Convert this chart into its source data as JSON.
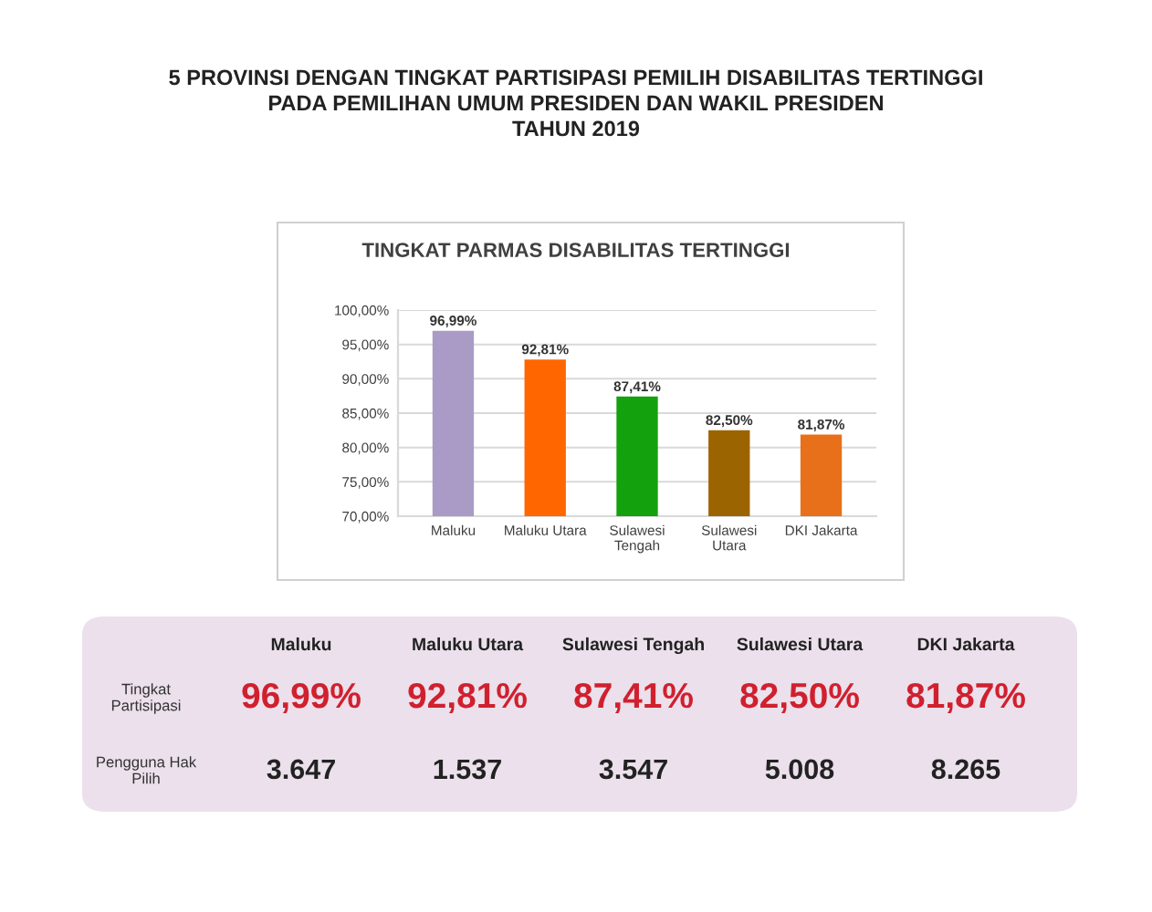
{
  "chart_data": {
    "type": "bar",
    "title": "5 PROVINSI DENGAN TINGKAT PARTISIPASI PEMILIH DISABILITAS TERTINGGI\nPADA PEMILIHAN UMUM PRESIDEN DAN WAKIL PRESIDEN\nTAHUN 2019",
    "subtitle": "TINGKAT PARMAS DISABILITAS TERTINGGI",
    "categories": [
      "Maluku",
      "Maluku Utara",
      "Sulawesi Tengah",
      "Sulawesi Utara",
      "DKI Jakarta"
    ],
    "values": [
      96.99,
      92.81,
      87.41,
      82.5,
      81.87
    ],
    "colors": [
      "#a99bc6",
      "#ff6600",
      "#13a10e",
      "#9c6400",
      "#e8701a"
    ],
    "value_labels": [
      "96,99%",
      "92,81%",
      "87,41%",
      "82,50%",
      "81,87%"
    ],
    "ylim": [
      70,
      100
    ],
    "yticks": [
      {
        "value": 70,
        "label": "70,00%"
      },
      {
        "value": 75,
        "label": "75,00%"
      },
      {
        "value": 80,
        "label": "80,00%"
      },
      {
        "value": 85,
        "label": "85,00%"
      },
      {
        "value": 90,
        "label": "90,00%"
      },
      {
        "value": 95,
        "label": "95,00%"
      },
      {
        "value": 100,
        "label": "100,00%"
      }
    ],
    "grid": "y",
    "annotations": [
      "Tingkat Partisipasi",
      "Pengguna Hak Pilih",
      "3.647",
      "1.537",
      "3.547",
      "5.008",
      "8.265"
    ]
  }
}
